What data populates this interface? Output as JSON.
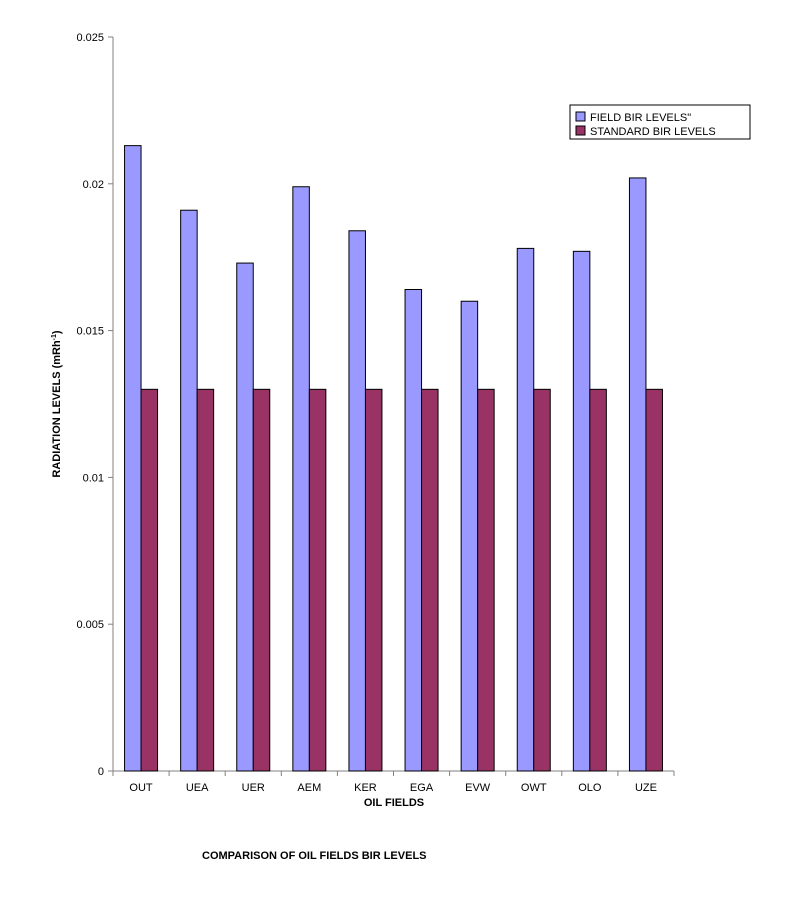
{
  "chart_data": {
    "type": "bar",
    "title": "COMPARISON OF OIL FIELDS BIR LEVELS",
    "xlabel": "OIL FIELDS",
    "ylabel": "RADIATION LEVELS (mRh",
    "ylabel_sup": "-1",
    "ylabel_close": ")",
    "categories": [
      "OUT",
      "UEA",
      "UER",
      "AEM",
      "KER",
      "EGA",
      "EVW",
      "OWT",
      "OLO",
      "UZE"
    ],
    "ylim": [
      0,
      0.025
    ],
    "yticks": [
      "0",
      "0.005",
      "0.01",
      "0.015",
      "0.02",
      "0.025"
    ],
    "grid": false,
    "legend_position": "top-right",
    "series": [
      {
        "name": "FIELD BIR LEVELS\"",
        "color": "#9999ff",
        "values": [
          0.0213,
          0.0191,
          0.0173,
          0.0199,
          0.0184,
          0.0164,
          0.016,
          0.0178,
          0.0177,
          0.0202
        ]
      },
      {
        "name": "STANDARD BIR LEVELS",
        "color": "#993366",
        "values": [
          0.013,
          0.013,
          0.013,
          0.013,
          0.013,
          0.013,
          0.013,
          0.013,
          0.013,
          0.013
        ]
      }
    ]
  }
}
